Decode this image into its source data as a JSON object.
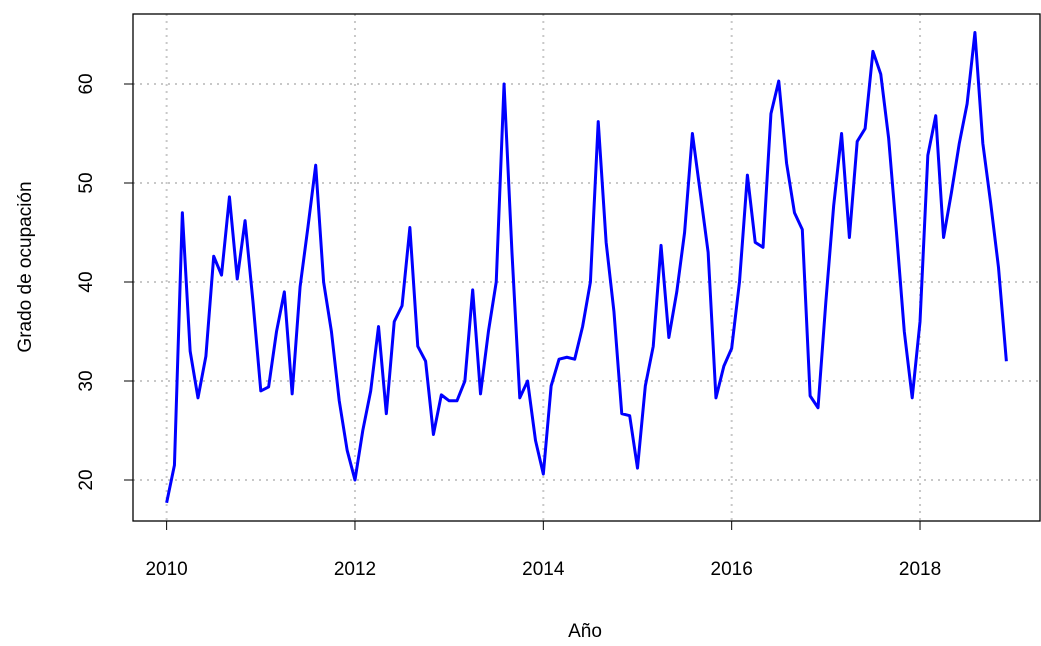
{
  "chart_data": {
    "type": "line",
    "x_label": "Año",
    "y_label": "Grado de ocupación",
    "xlim": [
      2009.643,
      2019.274
    ],
    "ylim": [
      15.86,
      67.07
    ],
    "xticks": [
      2010,
      2012,
      2014,
      2016,
      2018
    ],
    "yticks": [
      20,
      30,
      40,
      50,
      60
    ],
    "grid": true,
    "x": [
      2010,
      2010.083,
      2010.167,
      2010.25,
      2010.333,
      2010.417,
      2010.5,
      2010.583,
      2010.667,
      2010.75,
      2010.833,
      2010.917,
      2011,
      2011.083,
      2011.167,
      2011.25,
      2011.333,
      2011.417,
      2011.5,
      2011.583,
      2011.667,
      2011.75,
      2011.833,
      2011.917,
      2012,
      2012.083,
      2012.167,
      2012.25,
      2012.333,
      2012.417,
      2012.5,
      2012.583,
      2012.667,
      2012.75,
      2012.833,
      2012.917,
      2013,
      2013.083,
      2013.167,
      2013.25,
      2013.333,
      2013.417,
      2013.5,
      2013.583,
      2013.667,
      2013.75,
      2013.833,
      2013.917,
      2014,
      2014.083,
      2014.167,
      2014.25,
      2014.333,
      2014.417,
      2014.5,
      2014.583,
      2014.667,
      2014.75,
      2014.833,
      2014.917,
      2015,
      2015.083,
      2015.167,
      2015.25,
      2015.333,
      2015.417,
      2015.5,
      2015.583,
      2015.667,
      2015.75,
      2015.833,
      2015.917,
      2016,
      2016.083,
      2016.167,
      2016.25,
      2016.333,
      2016.417,
      2016.5,
      2016.583,
      2016.667,
      2016.75,
      2016.833,
      2016.917,
      2017,
      2017.083,
      2017.167,
      2017.25,
      2017.333,
      2017.417,
      2017.5,
      2017.583,
      2017.667,
      2017.75,
      2017.833,
      2017.917,
      2018,
      2018.083,
      2018.167,
      2018.25,
      2018.333,
      2018.417,
      2018.5,
      2018.583,
      2018.667,
      2018.75,
      2018.833,
      2018.917
    ],
    "series": [
      {
        "color": "#0000ff",
        "values": [
          17.7,
          21.5,
          47,
          33,
          28.3,
          32.5,
          42.6,
          40.7,
          48.6,
          40.3,
          46.2,
          38,
          29,
          29.4,
          35,
          39,
          28.7,
          39.5,
          45.5,
          51.8,
          40,
          35,
          28,
          23,
          20,
          25,
          29,
          35.5,
          26.7,
          36,
          37.6,
          45.5,
          33.5,
          32,
          24.6,
          28.6,
          28,
          28,
          30,
          39.2,
          28.7,
          35,
          40,
          60,
          43,
          28.3,
          30,
          24,
          20.6,
          29.5,
          32.2,
          32.4,
          32.2,
          35.5,
          40,
          56.2,
          44,
          37,
          26.7,
          26.5,
          21.2,
          29.5,
          33.5,
          43.7,
          34.4,
          39,
          45,
          55,
          49,
          43,
          28.3,
          31.5,
          33.3,
          40,
          50.8,
          44,
          43.5,
          57,
          60.3,
          52,
          47,
          45.3,
          28.5,
          27.3,
          38,
          47.7,
          55,
          44.5,
          54.2,
          55.5,
          63.3,
          61,
          54.5,
          45,
          35,
          28.3,
          36,
          52.8,
          56.8,
          44.5,
          49,
          54,
          58,
          65.2,
          54,
          48,
          41.5,
          32
        ]
      }
    ]
  }
}
